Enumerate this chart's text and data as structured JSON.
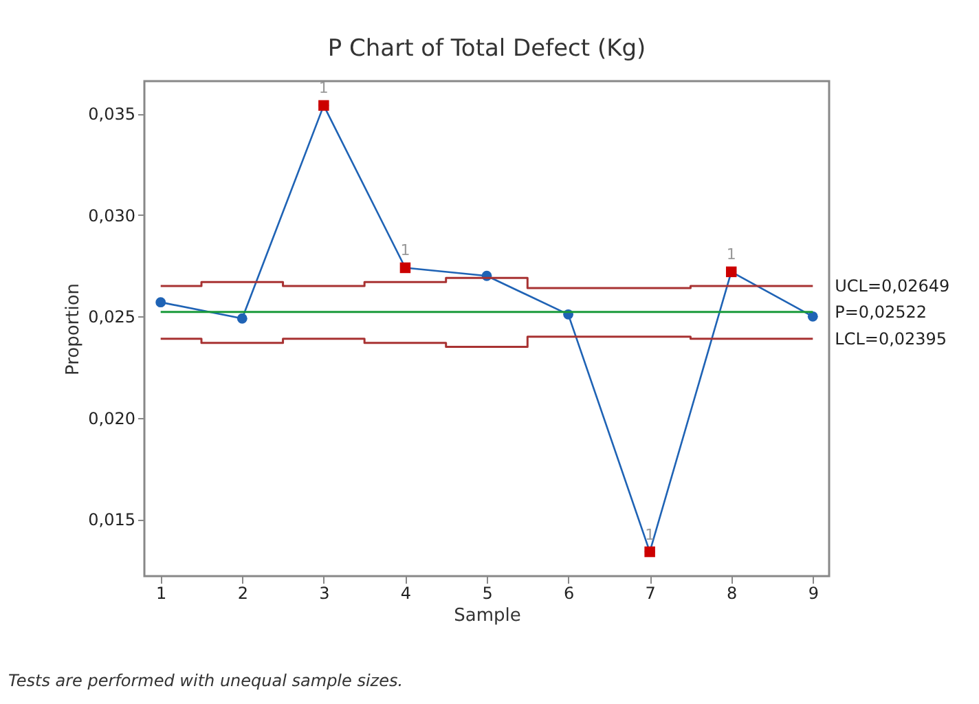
{
  "chart_data": {
    "type": "line",
    "title": "P Chart of Total Defect (Kg)",
    "xlabel": "Sample",
    "ylabel": "Proportion",
    "x": [
      1,
      2,
      3,
      4,
      5,
      6,
      7,
      8,
      9
    ],
    "series": [
      {
        "color": "#1f63b5",
        "marker": "circle",
        "values": [
          0.0257,
          0.0249,
          0.0354,
          0.0274,
          0.027,
          0.0251,
          0.0134,
          0.0272,
          0.025
        ]
      },
      {
        "type": "scatter",
        "color": "#cc0000",
        "marker": "square",
        "x": [
          3,
          4,
          7,
          8
        ],
        "values": [
          0.0354,
          0.0274,
          0.0134,
          0.0272
        ]
      },
      {
        "type": "step",
        "name": "UCL=0,02649",
        "color": "#a83232",
        "marker": "none",
        "values": [
          0.0265,
          0.0267,
          0.0265,
          0.0267,
          0.0269,
          0.0264,
          0.0264,
          0.0265,
          0.0265
        ]
      },
      {
        "type": "step",
        "name": "LCL=0,02395",
        "color": "#a83232",
        "marker": "none",
        "values": [
          0.0239,
          0.0237,
          0.0239,
          0.0237,
          0.0235,
          0.024,
          0.024,
          0.0239,
          0.0239
        ]
      }
    ],
    "ref_lines": [
      {
        "axis": "y",
        "value": 0.02522,
        "label": "P=0,02522",
        "color": "#1a9a3a"
      }
    ],
    "xlim": [
      0.8,
      9.2
    ],
    "xticks": [
      1,
      2,
      3,
      4,
      5,
      6,
      7,
      8,
      9
    ],
    "ylim": [
      0.0122,
      0.0366
    ],
    "yticks": [
      {
        "value": 0.015,
        "label": "0,015"
      },
      {
        "value": 0.02,
        "label": "0,020"
      },
      {
        "value": 0.025,
        "label": "0,025"
      },
      {
        "value": 0.03,
        "label": "0,030"
      },
      {
        "value": 0.035,
        "label": "0,035"
      }
    ],
    "annotations": [
      {
        "text": "1",
        "x": 3,
        "y": 0.0354
      },
      {
        "text": "1",
        "x": 4,
        "y": 0.0274
      },
      {
        "text": "1",
        "x": 7,
        "y": 0.0134
      },
      {
        "text": "1",
        "x": 8,
        "y": 0.0272
      },
      "Tests are performed with unequal sample sizes."
    ]
  }
}
